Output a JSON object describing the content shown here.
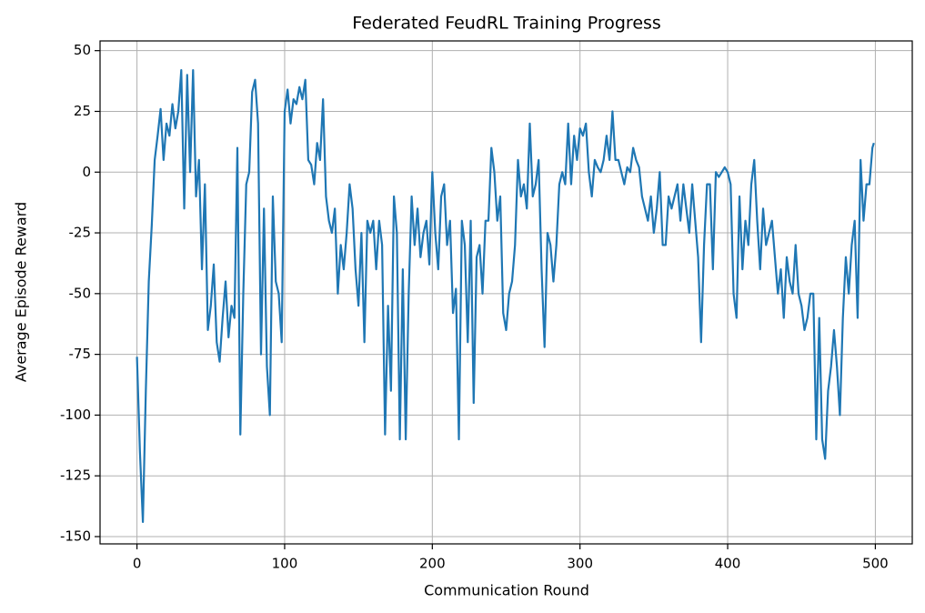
{
  "chart_data": {
    "type": "line",
    "title": "Federated FeudRL Training Progress",
    "x_label": "Communication Round",
    "y_label": "Average Episode Reward",
    "xlim": [
      -25,
      525
    ],
    "ylim": [
      -153,
      54
    ],
    "xticks": [
      0,
      100,
      200,
      300,
      400,
      500
    ],
    "yticks": [
      -150,
      -125,
      -100,
      -75,
      -50,
      -25,
      0,
      25,
      50
    ],
    "grid": true,
    "x": [
      0,
      2,
      4,
      6,
      8,
      10,
      12,
      14,
      16,
      18,
      20,
      22,
      24,
      26,
      28,
      30,
      32,
      34,
      36,
      38,
      40,
      42,
      44,
      46,
      48,
      50,
      52,
      54,
      56,
      58,
      60,
      62,
      64,
      66,
      68,
      70,
      72,
      74,
      76,
      78,
      80,
      82,
      84,
      86,
      88,
      90,
      92,
      94,
      96,
      98,
      100,
      102,
      104,
      106,
      108,
      110,
      112,
      114,
      116,
      118,
      120,
      122,
      124,
      126,
      128,
      130,
      132,
      134,
      136,
      138,
      140,
      142,
      144,
      146,
      148,
      150,
      152,
      154,
      156,
      158,
      160,
      162,
      164,
      166,
      168,
      170,
      172,
      174,
      176,
      178,
      180,
      182,
      184,
      186,
      188,
      190,
      192,
      194,
      196,
      198,
      200,
      202,
      204,
      206,
      208,
      210,
      212,
      214,
      216,
      218,
      220,
      222,
      224,
      226,
      228,
      230,
      232,
      234,
      236,
      238,
      240,
      242,
      244,
      246,
      248,
      250,
      252,
      254,
      256,
      258,
      260,
      262,
      264,
      266,
      268,
      270,
      272,
      274,
      276,
      278,
      280,
      282,
      284,
      286,
      288,
      290,
      292,
      294,
      296,
      298,
      300,
      302,
      304,
      306,
      308,
      310,
      312,
      314,
      316,
      318,
      320,
      322,
      324,
      326,
      328,
      330,
      332,
      334,
      336,
      338,
      340,
      342,
      344,
      346,
      348,
      350,
      352,
      354,
      356,
      358,
      360,
      362,
      364,
      366,
      368,
      370,
      372,
      374,
      376,
      378,
      380,
      382,
      384,
      386,
      388,
      390,
      392,
      394,
      396,
      398,
      400,
      402,
      404,
      406,
      408,
      410,
      412,
      414,
      416,
      418,
      420,
      422,
      424,
      426,
      428,
      430,
      432,
      434,
      436,
      438,
      440,
      442,
      444,
      446,
      448,
      450,
      452,
      454,
      456,
      458,
      460,
      462,
      464,
      466,
      468,
      470,
      472,
      474,
      476,
      478,
      480,
      482,
      484,
      486,
      488,
      490,
      492,
      494,
      496,
      498,
      499
    ],
    "series": [
      {
        "name": "Average Episode Reward",
        "color": "#1f77b4",
        "values": [
          -76,
          -115,
          -144,
          -90,
          -45,
          -22,
          5,
          15,
          26,
          5,
          20,
          15,
          28,
          18,
          25,
          42,
          -15,
          40,
          0,
          42,
          -10,
          5,
          -40,
          -5,
          -65,
          -55,
          -38,
          -70,
          -78,
          -60,
          -45,
          -68,
          -55,
          -60,
          10,
          -108,
          -50,
          -5,
          0,
          33,
          38,
          20,
          -75,
          -15,
          -80,
          -100,
          -10,
          -45,
          -50,
          -70,
          25,
          34,
          20,
          30,
          28,
          35,
          30,
          38,
          5,
          3,
          -5,
          12,
          5,
          30,
          -10,
          -20,
          -25,
          -15,
          -50,
          -30,
          -40,
          -25,
          -5,
          -15,
          -40,
          -55,
          -25,
          -70,
          -20,
          -25,
          -20,
          -40,
          -20,
          -30,
          -108,
          -55,
          -90,
          -10,
          -25,
          -110,
          -40,
          -110,
          -50,
          -10,
          -30,
          -15,
          -35,
          -25,
          -20,
          -38,
          0,
          -25,
          -40,
          -10,
          -5,
          -30,
          -20,
          -58,
          -48,
          -110,
          -20,
          -30,
          -70,
          -20,
          -95,
          -35,
          -30,
          -50,
          -20,
          -20,
          10,
          0,
          -20,
          -10,
          -58,
          -65,
          -50,
          -45,
          -30,
          5,
          -10,
          -5,
          -15,
          20,
          -10,
          -5,
          5,
          -40,
          -72,
          -25,
          -30,
          -45,
          -30,
          -5,
          0,
          -5,
          20,
          -5,
          15,
          5,
          18,
          15,
          20,
          0,
          -10,
          5,
          2,
          0,
          5,
          15,
          5,
          25,
          5,
          5,
          0,
          -5,
          2,
          0,
          10,
          5,
          2,
          -10,
          -15,
          -20,
          -10,
          -25,
          -15,
          0,
          -30,
          -30,
          -10,
          -15,
          -10,
          -5,
          -20,
          -5,
          -15,
          -25,
          -5,
          -20,
          -35,
          -70,
          -30,
          -5,
          -5,
          -40,
          0,
          -2,
          0,
          2,
          0,
          -5,
          -50,
          -60,
          -10,
          -40,
          -20,
          -30,
          -5,
          5,
          -20,
          -40,
          -15,
          -30,
          -25,
          -20,
          -35,
          -50,
          -40,
          -60,
          -35,
          -45,
          -50,
          -30,
          -50,
          -55,
          -65,
          -60,
          -50,
          -50,
          -110,
          -60,
          -110,
          -118,
          -90,
          -80,
          -65,
          -80,
          -100,
          -60,
          -35,
          -50,
          -30,
          -20,
          -60,
          5,
          -20,
          -5,
          -5,
          10,
          12
        ]
      }
    ]
  }
}
